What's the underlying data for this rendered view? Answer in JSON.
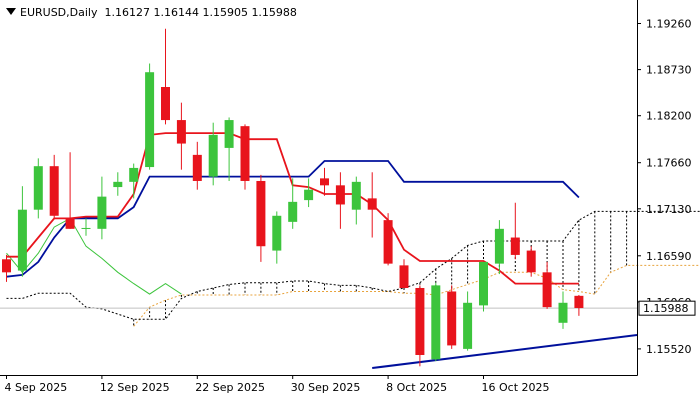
{
  "header": {
    "symbol": "EURUSD,Daily",
    "ohlc": "1.16127 1.16144 1.15905 1.15988"
  },
  "colors": {
    "bull": "#3cc43c",
    "bear": "#e8141c",
    "tenkan": "#e8141c",
    "kijun": "#00109c",
    "chikou": "#3cc43c",
    "spanA": "#e8a33c",
    "spanB": "#000000",
    "trend": "#00109c",
    "price_box_border": "#000000"
  },
  "price_label": "1.15988",
  "chart_data": {
    "type": "candlestick",
    "title": "EURUSD,Daily",
    "x_labels": [
      "4 Sep 2025",
      "12 Sep 2025",
      "22 Sep 2025",
      "30 Sep 2025",
      "8 Oct 2025",
      "16 Oct 2025"
    ],
    "x_label_bar_index": [
      0,
      6,
      12,
      18,
      24,
      30
    ],
    "y_ticks": [
      "1.19260",
      "1.18730",
      "1.18200",
      "1.17660",
      "1.17130",
      "1.16590",
      "1.16060",
      "1.15520"
    ],
    "y_range": [
      1.1522,
      1.1953
    ],
    "current_price": 1.15988,
    "candles": [
      {
        "o": 1.1655,
        "h": 1.166,
        "l": 1.1629,
        "c": 1.164
      },
      {
        "o": 1.1642,
        "h": 1.1739,
        "l": 1.1635,
        "c": 1.1712
      },
      {
        "o": 1.1712,
        "h": 1.1771,
        "l": 1.1702,
        "c": 1.1762
      },
      {
        "o": 1.1762,
        "h": 1.1775,
        "l": 1.1701,
        "c": 1.1705
      },
      {
        "o": 1.1702,
        "h": 1.1778,
        "l": 1.169,
        "c": 1.169
      },
      {
        "o": 1.169,
        "h": 1.1702,
        "l": 1.1682,
        "c": 1.1691
      },
      {
        "o": 1.169,
        "h": 1.175,
        "l": 1.1678,
        "c": 1.1727
      },
      {
        "o": 1.1738,
        "h": 1.1755,
        "l": 1.1728,
        "c": 1.1744
      },
      {
        "o": 1.1744,
        "h": 1.1765,
        "l": 1.1725,
        "c": 1.176
      },
      {
        "o": 1.1761,
        "h": 1.188,
        "l": 1.1758,
        "c": 1.187
      },
      {
        "o": 1.1853,
        "h": 1.192,
        "l": 1.181,
        "c": 1.1815
      },
      {
        "o": 1.1815,
        "h": 1.1835,
        "l": 1.1758,
        "c": 1.1788
      },
      {
        "o": 1.1775,
        "h": 1.179,
        "l": 1.1735,
        "c": 1.1745
      },
      {
        "o": 1.175,
        "h": 1.1812,
        "l": 1.174,
        "c": 1.1798
      },
      {
        "o": 1.1783,
        "h": 1.1818,
        "l": 1.1745,
        "c": 1.1815
      },
      {
        "o": 1.1808,
        "h": 1.181,
        "l": 1.1735,
        "c": 1.1745
      },
      {
        "o": 1.1745,
        "h": 1.1752,
        "l": 1.1652,
        "c": 1.167
      },
      {
        "o": 1.1665,
        "h": 1.171,
        "l": 1.165,
        "c": 1.1705
      },
      {
        "o": 1.1698,
        "h": 1.1748,
        "l": 1.169,
        "c": 1.1721
      },
      {
        "o": 1.1723,
        "h": 1.1748,
        "l": 1.1715,
        "c": 1.1735
      },
      {
        "o": 1.1748,
        "h": 1.176,
        "l": 1.1728,
        "c": 1.174
      },
      {
        "o": 1.174,
        "h": 1.1755,
        "l": 1.169,
        "c": 1.1718
      },
      {
        "o": 1.1712,
        "h": 1.175,
        "l": 1.1695,
        "c": 1.1744
      },
      {
        "o": 1.1725,
        "h": 1.1755,
        "l": 1.168,
        "c": 1.1712
      },
      {
        "o": 1.17,
        "h": 1.1708,
        "l": 1.1648,
        "c": 1.165
      },
      {
        "o": 1.1648,
        "h": 1.1655,
        "l": 1.1622,
        "c": 1.1622
      },
      {
        "o": 1.1622,
        "h": 1.1625,
        "l": 1.1532,
        "c": 1.1545
      },
      {
        "o": 1.154,
        "h": 1.1628,
        "l": 1.1538,
        "c": 1.1625
      },
      {
        "o": 1.1618,
        "h": 1.1625,
        "l": 1.1552,
        "c": 1.1556
      },
      {
        "o": 1.1552,
        "h": 1.1618,
        "l": 1.155,
        "c": 1.1605
      },
      {
        "o": 1.1602,
        "h": 1.1652,
        "l": 1.1595,
        "c": 1.1652
      },
      {
        "o": 1.165,
        "h": 1.17,
        "l": 1.1638,
        "c": 1.169
      },
      {
        "o": 1.168,
        "h": 1.172,
        "l": 1.1655,
        "c": 1.166
      },
      {
        "o": 1.1665,
        "h": 1.167,
        "l": 1.1635,
        "c": 1.164
      },
      {
        "o": 1.164,
        "h": 1.1652,
        "l": 1.1598,
        "c": 1.16
      },
      {
        "o": 1.1582,
        "h": 1.1618,
        "l": 1.1575,
        "c": 1.1605
      },
      {
        "o": 1.1613,
        "h": 1.1614,
        "l": 1.159,
        "c": 1.1599
      }
    ],
    "tenkan": [
      1.1658,
      1.1658,
      1.168,
      1.1702,
      1.1702,
      1.1704,
      1.1704,
      1.1704,
      1.173,
      1.1798,
      1.18,
      1.18,
      1.18,
      1.18,
      1.18,
      1.1793,
      1.1793,
      1.1793,
      1.174,
      1.1738,
      1.173,
      1.173,
      1.173,
      1.1718,
      1.17,
      1.1666,
      1.1653,
      1.1653,
      1.1653,
      1.1653,
      1.1653,
      1.1642,
      1.1627,
      1.1627,
      1.1627,
      1.1627,
      1.1627
    ],
    "kijun": [
      1.1635,
      1.1637,
      1.1652,
      1.168,
      1.1702,
      1.1702,
      1.1702,
      1.1702,
      1.1715,
      1.175,
      1.175,
      1.175,
      1.175,
      1.175,
      1.175,
      1.175,
      1.175,
      1.175,
      1.175,
      1.175,
      1.1768,
      1.1768,
      1.1768,
      1.1768,
      1.1768,
      1.1744,
      1.1744,
      1.1744,
      1.1744,
      1.1744,
      1.1744,
      1.1744,
      1.1744,
      1.1744,
      1.1744,
      1.1744,
      1.1726
    ],
    "chikou": [
      1.1662,
      1.164,
      1.1662,
      1.1692,
      1.1702,
      1.167,
      1.1656,
      1.164,
      1.1627,
      1.1615,
      1.1627,
      1.1615
    ],
    "span_a": [
      null,
      null,
      null,
      null,
      null,
      null,
      null,
      null,
      1.1578,
      1.16,
      1.1608,
      1.1614,
      1.1614,
      1.1614,
      1.1614,
      1.1614,
      1.1614,
      1.1614,
      1.1618,
      1.1618,
      1.1618,
      1.1618,
      1.1618,
      1.1618,
      1.1618,
      1.1616,
      1.1616,
      1.1614,
      1.162,
      1.1626,
      1.1632,
      1.164,
      1.164,
      1.164,
      1.1633,
      1.162,
      1.1618,
      1.1615,
      1.164,
      1.1648,
      1.1648,
      1.1648,
      1.1648,
      1.1648,
      1.1648,
      1.1648,
      1.1648
    ],
    "span_b": [
      1.161,
      1.161,
      1.1616,
      1.1616,
      1.1616,
      1.16,
      1.1598,
      1.1592,
      1.1586,
      1.1586,
      1.1586,
      1.161,
      1.1618,
      1.1622,
      1.1626,
      1.1628,
      1.1628,
      1.1628,
      1.163,
      1.163,
      1.1627,
      1.1625,
      1.1625,
      1.1622,
      1.1618,
      1.1622,
      1.1628,
      1.1644,
      1.1656,
      1.1671,
      1.1676,
      1.1676,
      1.1676,
      1.1676,
      1.1676,
      1.1676,
      1.17,
      1.171,
      1.171,
      1.171,
      1.171,
      1.171,
      1.171,
      1.171,
      1.171,
      1.171,
      1.171
    ],
    "trendline": {
      "from": {
        "bar": 23,
        "y": 1.153
      },
      "to": {
        "bar": 45,
        "y": 1.1568
      }
    }
  }
}
